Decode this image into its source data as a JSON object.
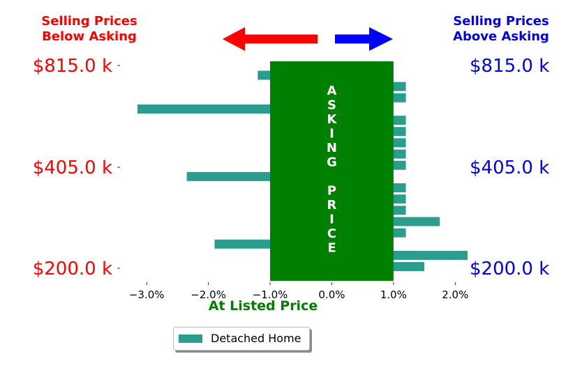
{
  "headers": {
    "below_asking": [
      "Selling Prices",
      "Below Asking"
    ],
    "above_asking": [
      "Selling Prices",
      "Above Asking"
    ],
    "at_listed": "At Listed Price"
  },
  "asking_label": [
    "A",
    "S",
    "K",
    "I",
    "N",
    "G",
    "",
    "P",
    "R",
    "I",
    "C",
    "E"
  ],
  "legend": {
    "label": "Detached Home"
  },
  "colors": {
    "below": "#ff0000",
    "above": "#0000ee",
    "at_listed": "#008000",
    "bar": "#2a9d8f",
    "band": "#008000",
    "arrow_left": "#ff0000",
    "arrow_right": "#0000ff"
  },
  "chart_data": {
    "type": "bar",
    "orientation": "horizontal",
    "xlim": [
      -3.5,
      2.2
    ],
    "xticks": [
      -3.0,
      -2.0,
      -1.0,
      0.0,
      1.0,
      2.0
    ],
    "xtick_labels": [
      "−3.0%",
      "−2.0%",
      "−1.0%",
      "0.0%",
      "1.0%",
      "2.0%"
    ],
    "band": [
      -1.0,
      1.0
    ],
    "ytick_labels": [
      "$815.0 k",
      "$405.0 k",
      "$200.0 k"
    ],
    "legend_position": "bottom",
    "series": [
      {
        "name": "Detached Home",
        "values": [
          -1.2,
          1.2,
          1.2,
          -3.15,
          1.2,
          1.2,
          1.2,
          1.2,
          1.2,
          -2.35,
          1.2,
          1.2,
          1.2,
          1.75,
          1.2,
          -1.9,
          2.2,
          1.5
        ]
      }
    ]
  }
}
